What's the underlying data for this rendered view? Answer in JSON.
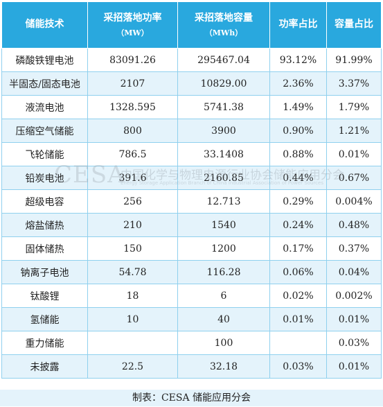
{
  "table": {
    "headers": [
      {
        "label": "储能技术",
        "unit": ""
      },
      {
        "label": "采招落地功率",
        "unit": "（MW）"
      },
      {
        "label": "采招落地容量",
        "unit": "（MWh）"
      },
      {
        "label": "功率占比",
        "unit": ""
      },
      {
        "label": "容量占比",
        "unit": ""
      }
    ],
    "rows": [
      [
        "磷酸铁锂电池",
        "83091.26",
        "295467.04",
        "93.12%",
        "91.99%"
      ],
      [
        "半固态/固态电池",
        "2107",
        "10829.00",
        "2.36%",
        "3.37%"
      ],
      [
        "液流电池",
        "1328.595",
        "5741.38",
        "1.49%",
        "1.79%"
      ],
      [
        "压缩空气储能",
        "800",
        "3900",
        "0.90%",
        "1.21%"
      ],
      [
        "飞轮储能",
        "786.5",
        "33.1408",
        "0.88%",
        "0.01%"
      ],
      [
        "铅炭电池",
        "391.6",
        "2160.85",
        "0.44%",
        "0.67%"
      ],
      [
        "超级电容",
        "256",
        "12.713",
        "0.29%",
        "0.004%"
      ],
      [
        "熔盐储热",
        "210",
        "1540",
        "0.24%",
        "0.48%"
      ],
      [
        "固体储热",
        "150",
        "1200",
        "0.17%",
        "0.37%"
      ],
      [
        "钠离子电池",
        "54.78",
        "116.28",
        "0.06%",
        "0.04%"
      ],
      [
        "钛酸锂",
        "18",
        "6",
        "0.02%",
        "0.002%"
      ],
      [
        "氢储能",
        "10",
        "40",
        "0.01%",
        "0.01%"
      ],
      [
        "重力储能",
        "",
        "100",
        "",
        "0.03%"
      ],
      [
        "未披露",
        "22.5",
        "32.18",
        "0.03%",
        "0.01%"
      ]
    ]
  },
  "footer": {
    "note": "制表：CESA 储能应用分会"
  },
  "watermark": {
    "logo": "CESA",
    "cn": "中国化学与物理电源行业协会储能应用分会",
    "en": "Energy Storage Application Branch of China Industrial Association of Power Sources"
  },
  "colors": {
    "header_bg": "#29a8de",
    "row_alt_bg": "#e4f3fb",
    "border": "#8fd0ee"
  }
}
